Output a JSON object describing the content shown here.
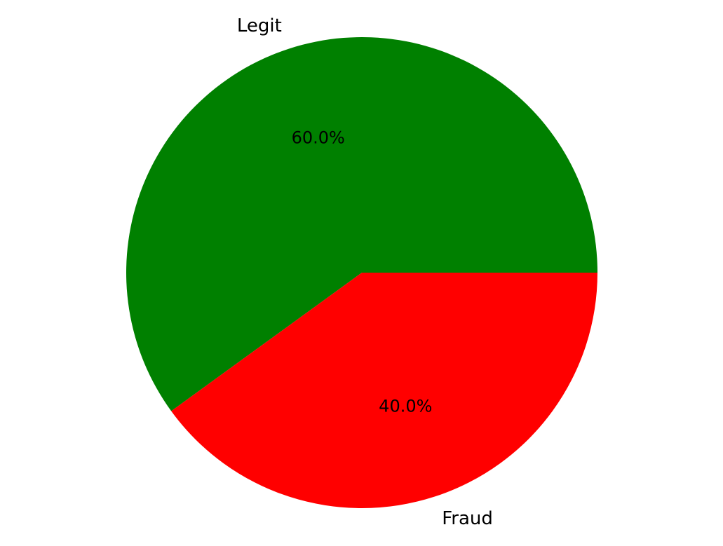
{
  "chart_data": {
    "type": "pie",
    "categories": [
      "Legit",
      "Fraud"
    ],
    "values": [
      60.0,
      40.0
    ],
    "percent_labels": [
      "60.0%",
      "40.0%"
    ],
    "colors": [
      "#008000",
      "#ff0000"
    ],
    "start_angle_deg": 0,
    "direction": "counterclockwise",
    "legend": "none"
  }
}
